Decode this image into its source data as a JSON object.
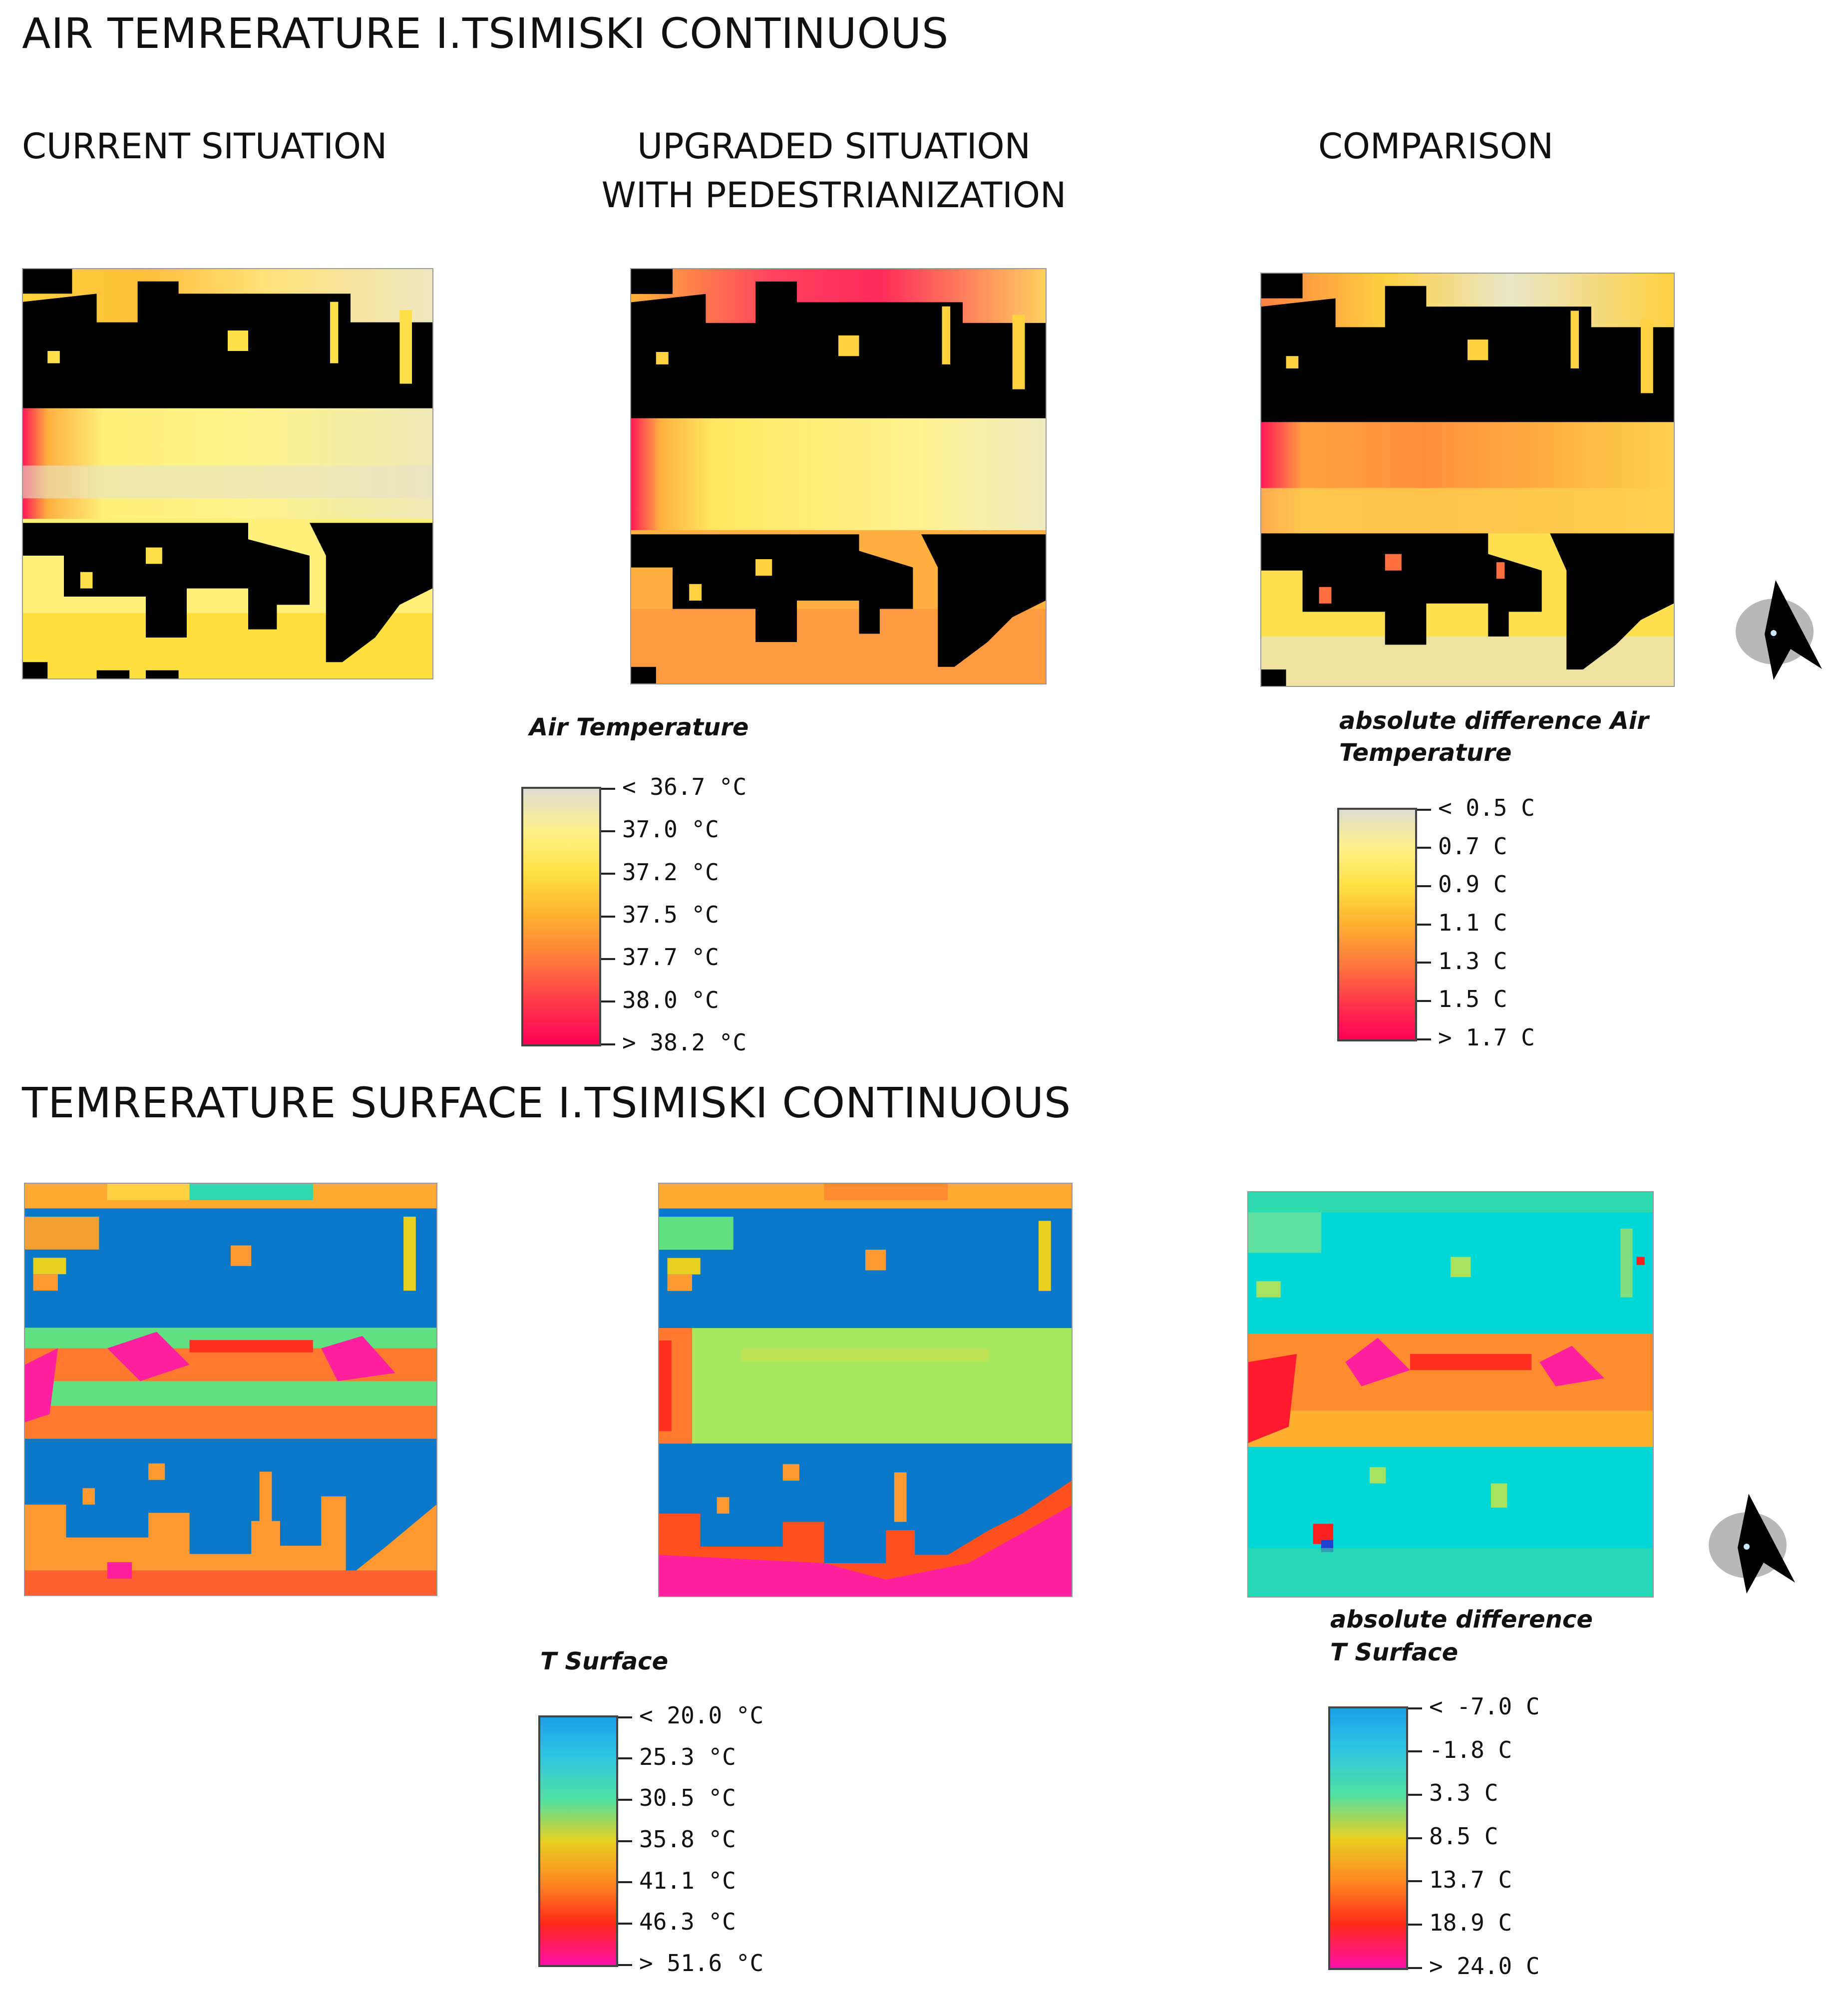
{
  "air": {
    "title": "AIR TEMRERATURE  I.TSIMISKI CONTINUOUS",
    "columns": {
      "current": "CURRENT SITUATION",
      "upgraded_line1": "UPGRADED SITUATION",
      "upgraded_line2": "WITH PEDESTRIANIZATION",
      "comparison": "COMPARISON"
    },
    "legend": {
      "title": "Air Temperature",
      "ticks": [
        "< 36.7 °C",
        "37.0  °C",
        "37.2  °C",
        "37.5  °C",
        "37.7  °C",
        "38.0  °C",
        "> 38.2 °C"
      ],
      "colors": [
        "#dcdcd0",
        "#fff28a",
        "#ffe040",
        "#ffb030",
        "#ff7a3c",
        "#ff3a4a",
        "#ff0058"
      ]
    },
    "diff_legend": {
      "title_line1": "absolute difference Air",
      "title_line2": "Temperature",
      "ticks": [
        "< 0.5 C",
        "0.7  C",
        "0.9  C",
        "1.1  C",
        "1.3  C",
        "1.5  C",
        "> 1.7 C"
      ],
      "colors": [
        "#dcdcd0",
        "#fff28a",
        "#ffe040",
        "#ffb030",
        "#ff7a3c",
        "#ff3a4a",
        "#ff0058"
      ]
    }
  },
  "surface": {
    "title": "TEMRERATURE SURFACE   I.TSIMISKI CONTINUOUS",
    "legend": {
      "title": "T Surface",
      "ticks": [
        "< 20.0 °C",
        "25.3  °C",
        "30.5  °C",
        "35.8  °C",
        "41.1  °C",
        "46.3  °C",
        "> 51.6 °C"
      ],
      "colors": [
        "#1aa0e8",
        "#30c8e0",
        "#50e0a0",
        "#e8d020",
        "#ff8820",
        "#ff2a1a",
        "#ff10a8"
      ]
    },
    "diff_legend": {
      "title_line1": "absolute difference",
      "title_line2": "T Surface",
      "ticks": [
        "< -7.0 C",
        "-1.8  C",
        "3.3  C",
        "8.5  C",
        "13.7  C",
        "18.9  C",
        "> 24.0 C"
      ],
      "colors": [
        "#1aa0e8",
        "#30c8e0",
        "#50e0a0",
        "#e8d020",
        "#ff8820",
        "#ff2a1a",
        "#ff10a8"
      ]
    }
  },
  "icons": {
    "north_arrow": "north-arrow-icon"
  }
}
